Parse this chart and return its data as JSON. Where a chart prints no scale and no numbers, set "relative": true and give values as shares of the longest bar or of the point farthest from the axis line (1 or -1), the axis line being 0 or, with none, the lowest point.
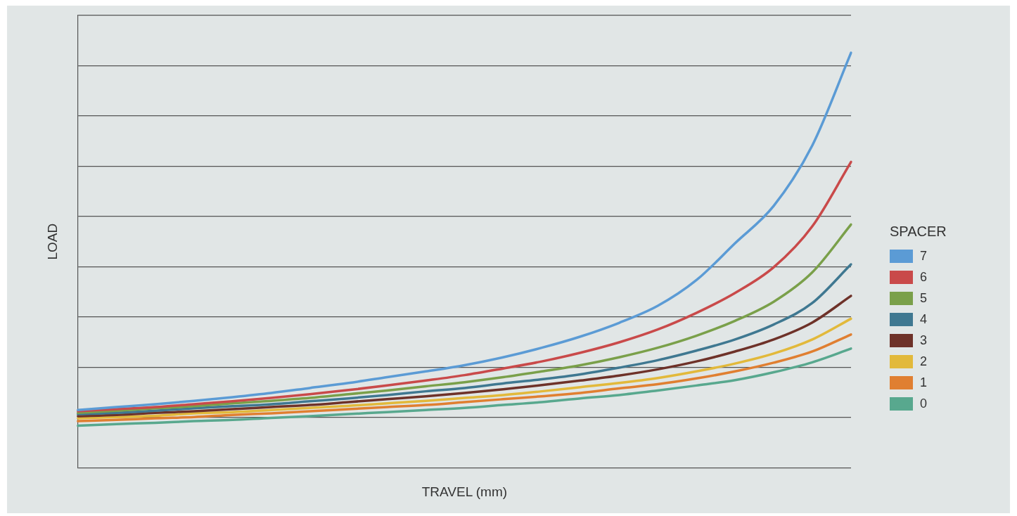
{
  "chart_data": {
    "type": "line",
    "relative": true,
    "xlabel": "TRAVEL (mm)",
    "ylabel": "LOAD",
    "legend_title": "SPACER",
    "legend": "right",
    "grid": "y",
    "marker": "none",
    "line_style": "solid",
    "categories": [
      null,
      null,
      null,
      null,
      null,
      null,
      null,
      null,
      null,
      null,
      null,
      null,
      null,
      null,
      null,
      null,
      null,
      null,
      null,
      null,
      null
    ],
    "series": [
      {
        "name": "7",
        "color": "#5b9bd5",
        "values": [
          0.139,
          0.146,
          0.153,
          0.161,
          0.17,
          0.18,
          0.192,
          0.204,
          0.218,
          0.232,
          0.247,
          0.266,
          0.289,
          0.316,
          0.349,
          0.39,
          0.452,
          0.541,
          0.631,
          0.777,
          1
        ]
      },
      {
        "name": "6",
        "color": "#c94a4a",
        "values": [
          0.136,
          0.141,
          0.146,
          0.153,
          0.16,
          0.168,
          0.177,
          0.187,
          0.198,
          0.21,
          0.223,
          0.239,
          0.256,
          0.277,
          0.302,
          0.333,
          0.373,
          0.421,
          0.483,
          0.582,
          0.737
        ]
      },
      {
        "name": "5",
        "color": "#7aa04a",
        "values": [
          0.132,
          0.137,
          0.143,
          0.148,
          0.155,
          0.161,
          0.168,
          0.177,
          0.186,
          0.196,
          0.206,
          0.218,
          0.232,
          0.247,
          0.266,
          0.289,
          0.318,
          0.354,
          0.4,
          0.471,
          0.586
        ]
      },
      {
        "name": "4",
        "color": "#3f7891",
        "values": [
          0.129,
          0.132,
          0.137,
          0.143,
          0.148,
          0.153,
          0.16,
          0.167,
          0.175,
          0.184,
          0.192,
          0.203,
          0.213,
          0.225,
          0.241,
          0.259,
          0.282,
          0.309,
          0.345,
          0.397,
          0.49
        ]
      },
      {
        "name": "3",
        "color": "#6e3229",
        "values": [
          0.124,
          0.127,
          0.132,
          0.136,
          0.141,
          0.146,
          0.151,
          0.158,
          0.165,
          0.172,
          0.18,
          0.189,
          0.199,
          0.21,
          0.222,
          0.237,
          0.256,
          0.28,
          0.309,
          0.35,
          0.414
        ]
      },
      {
        "name": "2",
        "color": "#e2b93b",
        "values": [
          0.119,
          0.122,
          0.125,
          0.131,
          0.134,
          0.139,
          0.144,
          0.149,
          0.155,
          0.161,
          0.168,
          0.175,
          0.184,
          0.194,
          0.204,
          0.216,
          0.232,
          0.251,
          0.275,
          0.309,
          0.359
        ]
      },
      {
        "name": "1",
        "color": "#e07f31",
        "values": [
          0.112,
          0.115,
          0.119,
          0.122,
          0.127,
          0.131,
          0.136,
          0.141,
          0.146,
          0.151,
          0.158,
          0.165,
          0.172,
          0.18,
          0.191,
          0.201,
          0.215,
          0.232,
          0.253,
          0.28,
          0.321
        ]
      },
      {
        "name": "0",
        "color": "#58a88e",
        "values": [
          0.101,
          0.105,
          0.108,
          0.112,
          0.115,
          0.12,
          0.124,
          0.129,
          0.134,
          0.139,
          0.144,
          0.151,
          0.158,
          0.167,
          0.175,
          0.186,
          0.198,
          0.211,
          0.23,
          0.254,
          0.287
        ]
      }
    ]
  }
}
